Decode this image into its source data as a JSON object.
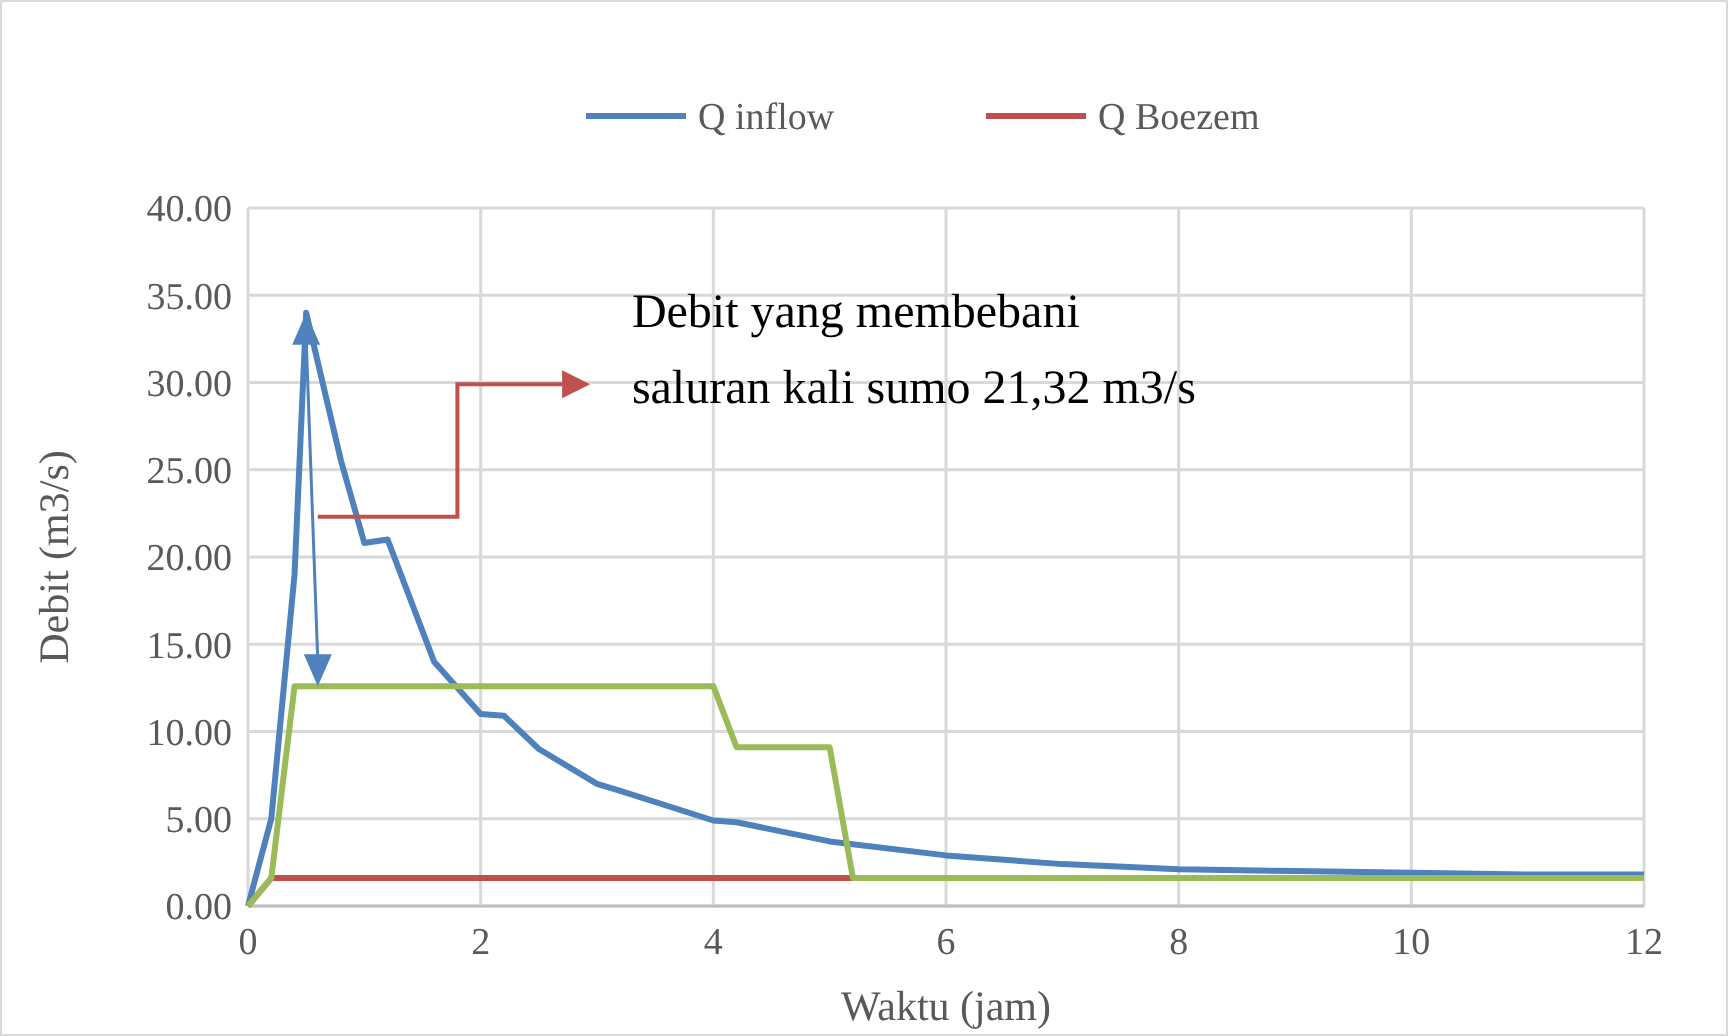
{
  "chart_data": {
    "type": "line",
    "xlabel": "Waktu (jam)",
    "ylabel": "Debit (m3/s)",
    "xlim": [
      0,
      12
    ],
    "xticks": [
      0,
      2,
      4,
      6,
      8,
      10,
      12
    ],
    "ylim": [
      0,
      40
    ],
    "yticks": [
      {
        "value": 0,
        "label": "0.00"
      },
      {
        "value": 5,
        "label": "5.00"
      },
      {
        "value": 10,
        "label": "10.00"
      },
      {
        "value": 15,
        "label": "15.00"
      },
      {
        "value": 20,
        "label": "20.00"
      },
      {
        "value": 25,
        "label": "25.00"
      },
      {
        "value": 30,
        "label": "30.00"
      },
      {
        "value": 35,
        "label": "35.00"
      },
      {
        "value": 40,
        "label": "40.00"
      }
    ],
    "grid": true,
    "legend": "top",
    "line_style": "solid",
    "marker": "none",
    "series": [
      {
        "name": "Q inflow",
        "color": "#4f81bd",
        "x": [
          0,
          0.2,
          0.4,
          0.5,
          0.8,
          1,
          1.2,
          1.4,
          1.6,
          2,
          2.2,
          2.5,
          3,
          3.2,
          4,
          4.2,
          5,
          6,
          7,
          8,
          9,
          10,
          11,
          12
        ],
        "values": [
          0,
          5,
          19,
          34,
          25.5,
          20.8,
          21,
          17.5,
          14,
          11,
          10.9,
          9,
          7,
          6.6,
          4.9,
          4.8,
          3.7,
          2.9,
          2.4,
          2.1,
          2,
          1.9,
          1.8,
          1.8
        ]
      },
      {
        "name": "Q Boezem",
        "color": "#c0504d",
        "x": [
          0,
          0.2,
          5.2
        ],
        "values": [
          0,
          1.6,
          1.6
        ]
      },
      {
        "color": "#9bbb59",
        "x": [
          0,
          0.2,
          0.4,
          4,
          4.2,
          5,
          5.2,
          12
        ],
        "values": [
          0,
          1.6,
          12.6,
          12.6,
          9.1,
          9.1,
          1.6,
          1.6
        ]
      }
    ],
    "annotations": [
      "Debit yang membebani saluran kali sumo 21,32 m3/s"
    ]
  }
}
